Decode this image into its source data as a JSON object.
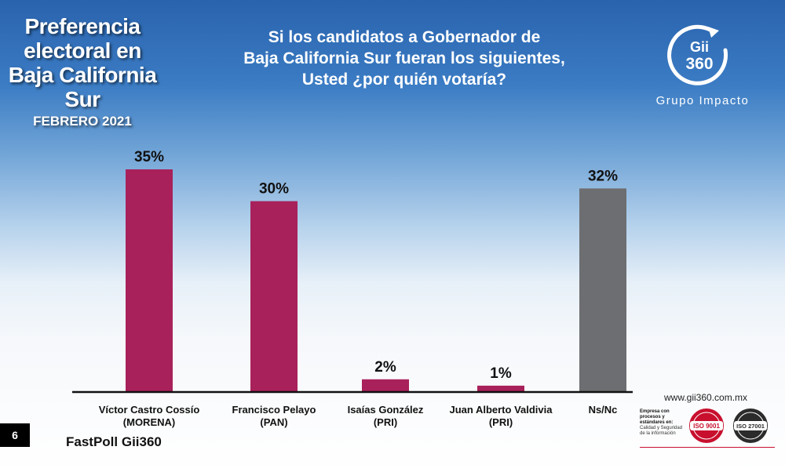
{
  "title": {
    "line1": "Preferencia",
    "line2": "electoral en",
    "line3": "Baja California Sur",
    "date": "FEBRERO 2021"
  },
  "question": {
    "line1": "Si los candidatos a Gobernador de",
    "line2": "Baja California Sur fueran los siguientes,",
    "line3": "Usted ¿por quién votaría?"
  },
  "logo": {
    "text_top": "Gii",
    "text_bottom": "360",
    "brand": "Grupo Impacto"
  },
  "footer": {
    "page_number": "6",
    "source": "FastPoll Gii360",
    "url": "www.gii360.com.mx",
    "iso_caption_bold": "Empresa con procesos y estándares en:",
    "iso_caption": "Calidad y Seguridad de la información",
    "iso1": "ISO 9001",
    "iso2": "ISO 27001"
  },
  "colors": {
    "candidate_bar": "#a8215a",
    "nsnc_bar": "#6d6e71",
    "axis": "#111111",
    "iso_red": "#c8102e",
    "iso_dark": "#2b2b2b"
  },
  "chart_data": {
    "type": "bar",
    "categories": [
      [
        "Víctor Castro Cossío",
        "(MORENA)"
      ],
      [
        "Francisco Pelayo",
        "(PAN)"
      ],
      [
        "Isaías González",
        "(PRI)"
      ],
      [
        "Juan Alberto Valdivia",
        "(PRI)"
      ],
      [
        "Ns/Nc",
        ""
      ]
    ],
    "values": [
      35,
      30,
      2,
      1,
      32
    ],
    "labels": [
      "35%",
      "30%",
      "2%",
      "1%",
      "32%"
    ],
    "bar_colors": [
      "#a8215a",
      "#a8215a",
      "#a8215a",
      "#a8215a",
      "#6d6e71"
    ],
    "ylim": [
      0,
      35
    ],
    "grid": false,
    "legend": "none",
    "title": "",
    "xlabel": "",
    "ylabel": ""
  }
}
